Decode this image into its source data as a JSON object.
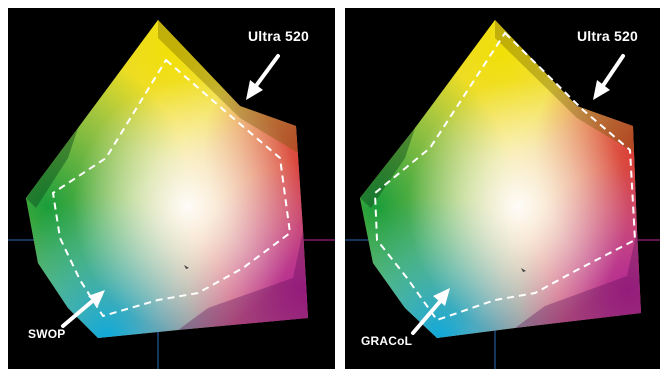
{
  "panels": [
    {
      "gamut_label": "Ultra 520",
      "outline_label": "SWOP"
    },
    {
      "gamut_label": "Ultra 520",
      "outline_label": "GRACoL"
    }
  ],
  "colors": {
    "background": "#000000",
    "label": "#ffffff",
    "outline": "#ffffff",
    "axis_blue": "#2a6cb8",
    "axis_magenta": "#c02aa0"
  },
  "icons": [
    "arrow-icon"
  ]
}
